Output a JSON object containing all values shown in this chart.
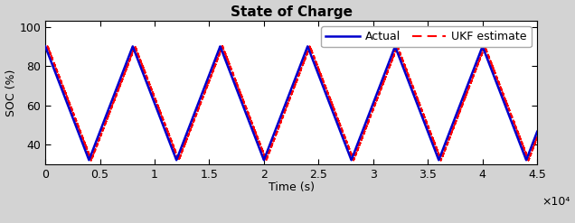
{
  "title": "State of Charge",
  "xlabel": "Time (s)",
  "ylabel": "SOC (%)",
  "xlim": [
    0,
    45000
  ],
  "ylim": [
    30,
    103
  ],
  "yticks": [
    40,
    60,
    80,
    100
  ],
  "xticks": [
    0,
    5000,
    10000,
    15000,
    20000,
    25000,
    30000,
    35000,
    40000,
    45000
  ],
  "xticklabels": [
    "0",
    "0.5",
    "1",
    "1.5",
    "2",
    "2.5",
    "3",
    "3.5",
    "4",
    "4.5"
  ],
  "x_scale_label": "×10⁴",
  "actual_color": "#0000cd",
  "ukf_color": "#ff0000",
  "actual_lw": 1.8,
  "ukf_lw": 1.5,
  "background_color": "#d3d3d3",
  "plot_bg_color": "#ffffff",
  "legend_labels": [
    "Actual",
    "UKF estimate"
  ],
  "peak_value": 90,
  "trough_value": 32,
  "start_value": 90,
  "period": 8000,
  "total_time": 45000,
  "title_fontsize": 11,
  "label_fontsize": 9,
  "tick_fontsize": 9,
  "ukf_phase_lag": 200,
  "ncol": 2
}
